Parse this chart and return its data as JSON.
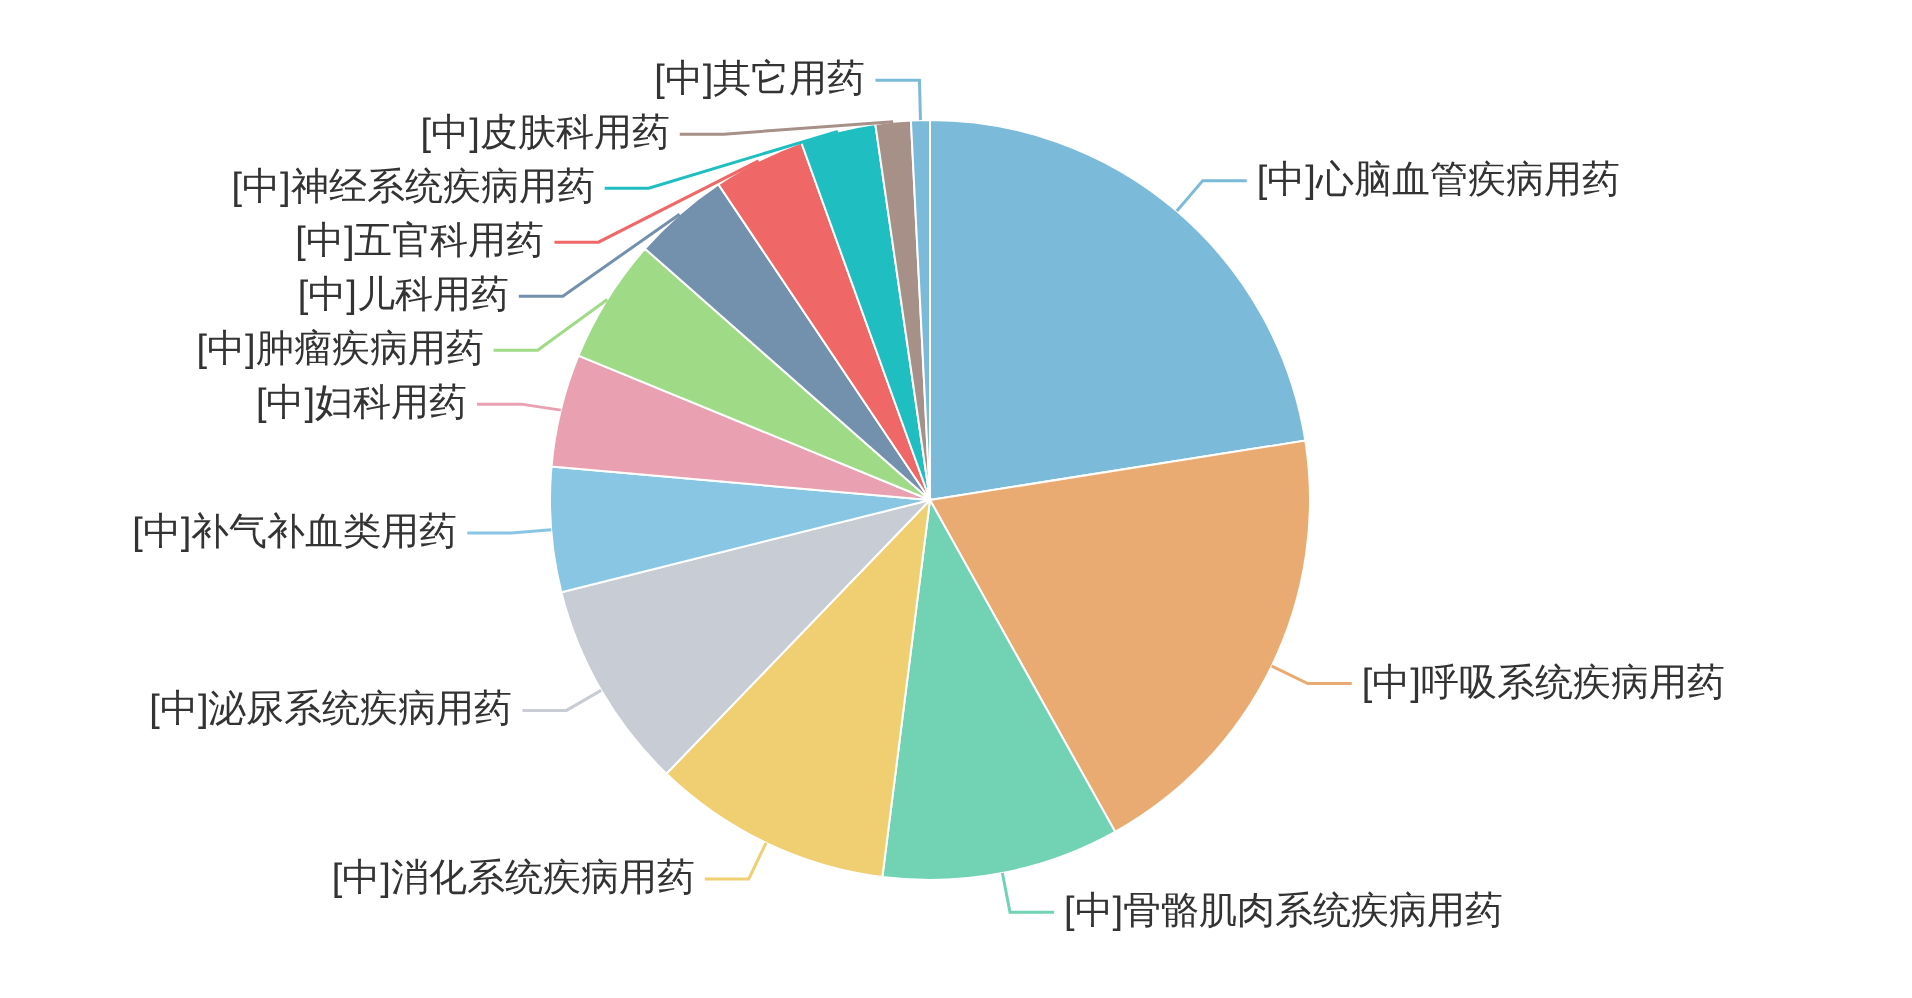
{
  "chart_data": {
    "type": "pie",
    "categories": [
      "[中]心脑血管疾病用药",
      "[中]呼吸系统疾病用药",
      "[中]骨骼肌肉系统疾病用药",
      "[中]消化系统疾病用药",
      "[中]泌尿系统疾病用药",
      "[中]补气补血类用药",
      "[中]妇科用药",
      "[中]肿瘤疾病用药",
      "[中]儿科用药",
      "[中]五官科用药",
      "[中]神经系统疾病用药",
      "[中]皮肤科用药",
      "[中]其它用药"
    ],
    "values": [
      22.5,
      19.4,
      10.1,
      10.2,
      8.9,
      5.3,
      4.8,
      5.3,
      4.1,
      3.9,
      3.2,
      1.5,
      0.8
    ],
    "colors": [
      "#7cbad9",
      "#eaab72",
      "#72d3b4",
      "#efcf72",
      "#c8ccd4",
      "#88c6e3",
      "#e9a0b0",
      "#9fdb86",
      "#7390ad",
      "#ef6767",
      "#1fbfc1",
      "#a79088",
      "#7cbad9"
    ]
  }
}
